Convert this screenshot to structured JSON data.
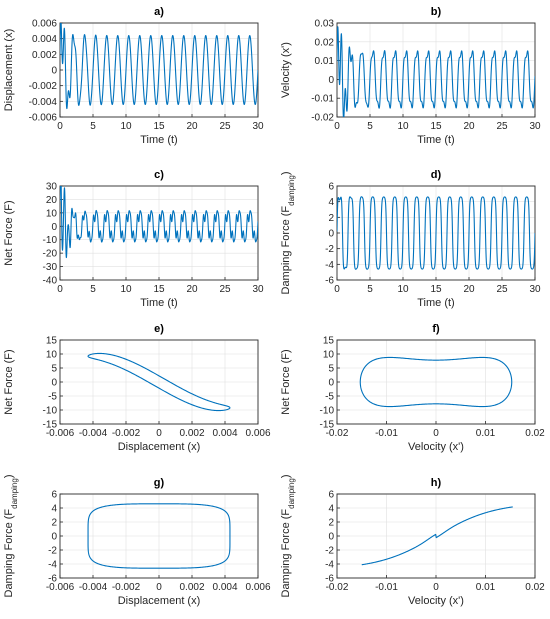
{
  "figure": {
    "line_color": "#0072bd",
    "grid": true
  },
  "chart_data": [
    {
      "panel": "a)",
      "title": "a)",
      "type": "line",
      "xlabel": "Time (t)",
      "ylabel": "Displacement (x)",
      "xlim": [
        0,
        30
      ],
      "ylim": [
        -0.006,
        0.006
      ],
      "xticks": [
        "0",
        "5",
        "10",
        "15",
        "20",
        "25",
        "30"
      ],
      "yticks": [
        "-0.006",
        "-0.004",
        "-0.002",
        "0",
        "0.002",
        "0.004",
        "0.006"
      ],
      "curve": {
        "kind": "time_sine",
        "amplitude": 0.0044,
        "frequency_hz": 0.6,
        "transient_start": 0.005,
        "transient_decay": 1.2,
        "harmonic": 0.0
      }
    },
    {
      "panel": "b)",
      "title": "b)",
      "type": "line",
      "xlabel": "Time (t)",
      "ylabel": "Velocity (x')",
      "xlim": [
        0,
        30
      ],
      "ylim": [
        -0.02,
        0.03
      ],
      "xticks": [
        "0",
        "5",
        "10",
        "15",
        "20",
        "25",
        "30"
      ],
      "yticks": [
        "-0.02",
        "-0.01",
        "0",
        "0.01",
        "0.02",
        "0.03"
      ],
      "curve": {
        "kind": "time_sine",
        "amplitude": 0.0155,
        "frequency_hz": 0.6,
        "transient_start": 0.02,
        "transient_decay": 1.5,
        "harmonic": 0.2
      }
    },
    {
      "panel": "c)",
      "title": "c)",
      "type": "line",
      "xlabel": "Time (t)",
      "ylabel": "Net Force (F)",
      "xlim": [
        0,
        30
      ],
      "ylim": [
        -40,
        30
      ],
      "xticks": [
        "0",
        "5",
        "10",
        "15",
        "20",
        "25",
        "30"
      ],
      "yticks": [
        "-40",
        "-30",
        "-20",
        "-10",
        "0",
        "10",
        "20",
        "30"
      ],
      "curve": {
        "kind": "time_force",
        "amplitude": 12,
        "frequency_hz": 0.6,
        "transient_start": 38,
        "transient_decay": 1.1,
        "harmonic": 0.35
      }
    },
    {
      "panel": "d)",
      "title": "d)",
      "type": "line",
      "xlabel": "Time (t)",
      "ylabel": "Damping Force (F",
      "ylabel_sub": "damping",
      "ylabel_suffix": ")",
      "xlim": [
        0,
        30
      ],
      "ylim": [
        -6,
        6
      ],
      "xticks": [
        "0",
        "5",
        "10",
        "15",
        "20",
        "25",
        "30"
      ],
      "yticks": [
        "-6",
        "-4",
        "-2",
        "0",
        "2",
        "4",
        "6"
      ],
      "curve": {
        "kind": "time_square",
        "amplitude": 4.6,
        "frequency_hz": 0.6,
        "transient_start": 0.5,
        "transient_decay": 1.5,
        "harmonic": 0.0
      }
    },
    {
      "panel": "e)",
      "title": "e)",
      "type": "line",
      "xlabel": "Displacement (x)",
      "ylabel": "Net Force (F)",
      "xlim": [
        -0.006,
        0.006
      ],
      "ylim": [
        -15,
        15
      ],
      "xticks": [
        "-0.006",
        "-0.004",
        "-0.002",
        "0",
        "0.002",
        "0.004",
        "0.006"
      ],
      "yticks": [
        "-15",
        "-10",
        "-5",
        "0",
        "5",
        "10",
        "15"
      ],
      "curve": {
        "kind": "phase_xF",
        "x_amp": 0.0043,
        "f_stiff": 10.5,
        "f_damp": 2.2,
        "harmonic": 1.3
      }
    },
    {
      "panel": "f)",
      "title": "f)",
      "type": "line",
      "xlabel": "Velocity (x')",
      "ylabel": "Net Force (F)",
      "xlim": [
        -0.02,
        0.02
      ],
      "ylim": [
        -15,
        15
      ],
      "xticks": [
        "-0.02",
        "-0.01",
        "0",
        "0.01",
        "0.02"
      ],
      "yticks": [
        "-15",
        "-10",
        "-5",
        "0",
        "5",
        "10",
        "15"
      ],
      "curve": {
        "kind": "phase_vF",
        "v_amp": 0.0153,
        "f_amp": 10.0,
        "harmonic": 2.2
      }
    },
    {
      "panel": "g)",
      "title": "g)",
      "type": "line",
      "xlabel": "Displacement (x)",
      "ylabel": "Damping Force (F",
      "ylabel_sub": "damping",
      "ylabel_suffix": ")",
      "xlim": [
        -0.006,
        0.006
      ],
      "ylim": [
        -6,
        6
      ],
      "xticks": [
        "-0.006",
        "-0.004",
        "-0.002",
        "0",
        "0.002",
        "0.004",
        "0.006"
      ],
      "yticks": [
        "-6",
        "-4",
        "-2",
        "0",
        "2",
        "4",
        "6"
      ],
      "curve": {
        "kind": "phase_xFd",
        "x_amp": 0.0043,
        "fd_amp": 4.6,
        "shape": 0.35
      }
    },
    {
      "panel": "h)",
      "title": "h)",
      "type": "line",
      "xlabel": "Velocity (x')",
      "ylabel": "Damping Force (F",
      "ylabel_sub": "damping",
      "ylabel_suffix": ")",
      "xlim": [
        -0.02,
        0.02
      ],
      "ylim": [
        -6,
        6
      ],
      "xticks": [
        "-0.02",
        "-0.01",
        "0",
        "0.01",
        "0.02"
      ],
      "yticks": [
        "-6",
        "-4",
        "-2",
        "0",
        "2",
        "4",
        "6"
      ],
      "curve": {
        "kind": "phase_vFd",
        "v_min": -0.015,
        "v_max": 0.0155,
        "fd_min": -4.6,
        "fd_max": 4.7
      }
    }
  ]
}
